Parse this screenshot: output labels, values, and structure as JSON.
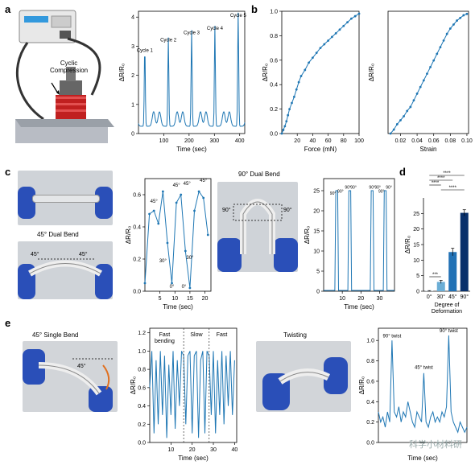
{
  "panels": {
    "a": {
      "label": "a",
      "illustration": {
        "annotation": "Cyclic\nCompression"
      },
      "chart": {
        "xlabel": "Time (sec)",
        "ylabel": "ΔR/R₀",
        "xlim": [
          0,
          420
        ],
        "ylim": [
          0,
          4.2
        ],
        "xticks": [
          "100",
          "200",
          "300",
          "400"
        ],
        "yticks": [
          "0",
          "1",
          "2",
          "3",
          "4"
        ],
        "cycles": [
          {
            "label": "Cycle 1",
            "t": 25,
            "peak": 2.7
          },
          {
            "label": "Cycle 2",
            "t": 118,
            "peak": 3.05
          },
          {
            "label": "Cycle 3",
            "t": 210,
            "peak": 3.3
          },
          {
            "label": "Cycle 4",
            "t": 302,
            "peak": 3.45
          },
          {
            "label": "Cycle 5",
            "t": 394,
            "peak": 3.9
          }
        ]
      }
    },
    "b": {
      "label": "b",
      "chart1": {
        "xlabel": "Force (mN)",
        "ylabel": "ΔR/R₀",
        "xticks": [
          "20",
          "40",
          "60",
          "80",
          "100"
        ],
        "yticks": [
          "0.0",
          "0.2",
          "0.4",
          "0.6",
          "0.8",
          "1.0"
        ],
        "x": [
          0,
          2,
          4,
          6,
          8,
          10,
          13,
          16,
          19,
          22,
          25,
          30,
          35,
          40,
          45,
          50,
          55,
          60,
          65,
          70,
          75,
          80,
          85,
          90,
          95,
          100
        ],
        "y": [
          0,
          0.03,
          0.06,
          0.1,
          0.15,
          0.2,
          0.25,
          0.3,
          0.36,
          0.42,
          0.47,
          0.52,
          0.58,
          0.62,
          0.66,
          0.7,
          0.73,
          0.76,
          0.79,
          0.82,
          0.85,
          0.88,
          0.91,
          0.94,
          0.96,
          0.98
        ]
      },
      "chart2": {
        "xlabel": "Strain",
        "ylabel": "ΔR/R₀",
        "xticks": [
          "0.02",
          "0.04",
          "0.06",
          "0.08",
          "0.10"
        ],
        "x": [
          0.008,
          0.012,
          0.016,
          0.02,
          0.024,
          0.028,
          0.032,
          0.036,
          0.04,
          0.044,
          0.048,
          0.052,
          0.056,
          0.06,
          0.064,
          0.068,
          0.072,
          0.076,
          0.08,
          0.084,
          0.088,
          0.092,
          0.096,
          0.1
        ],
        "y": [
          0.0,
          0.03,
          0.07,
          0.1,
          0.13,
          0.17,
          0.2,
          0.25,
          0.3,
          0.35,
          0.4,
          0.45,
          0.5,
          0.55,
          0.6,
          0.65,
          0.7,
          0.75,
          0.79,
          0.82,
          0.85,
          0.87,
          0.89,
          0.9
        ]
      }
    },
    "c": {
      "label": "c",
      "photo_caption_1": "45° Dual Bend",
      "photo_marks_1": [
        "45°",
        "45°"
      ],
      "chart1": {
        "xlabel": "Time (sec)",
        "ylabel": "ΔR/R₀",
        "xticks": [
          "5",
          "10",
          "15",
          "20"
        ],
        "yticks": [
          "0.0",
          "0.2",
          "0.4",
          "0.6"
        ],
        "annotations": [
          "45°",
          "45°",
          "45°",
          "45°",
          "30°",
          "30°",
          "0°",
          "0°"
        ],
        "x": [
          0,
          1.5,
          3,
          4.5,
          6,
          7.5,
          9,
          10.5,
          12,
          13.5,
          15,
          16.5,
          18,
          19.5,
          21
        ],
        "y": [
          0.05,
          0.48,
          0.5,
          0.42,
          0.62,
          0.3,
          0.05,
          0.55,
          0.6,
          0.25,
          0.02,
          0.5,
          0.62,
          0.58,
          0.35
        ]
      },
      "photo_caption_2": "90° Dual Bend",
      "photo_marks_2": [
        "90°",
        "90°"
      ],
      "chart2": {
        "xlabel": "Time (sec)",
        "ylabel": "ΔR/R₀",
        "xticks": [
          "10",
          "20",
          "30"
        ],
        "yticks": [
          "0",
          "5",
          "10",
          "15",
          "20",
          "25"
        ],
        "annotations": [
          "90°",
          "90°",
          "90°",
          "90°",
          "90°",
          "90°",
          "90°",
          "90°"
        ],
        "peaks": [
          7,
          14,
          26,
          33
        ],
        "peak_value": 25
      }
    },
    "d": {
      "label": "d",
      "chart_type": "bar",
      "xlabel": "Degree of Deformation",
      "ylabel": "ΔR/R₀",
      "categories": [
        "0°",
        "30°",
        "45°",
        "90°"
      ],
      "values": [
        0.1,
        3.0,
        12.6,
        25.2
      ],
      "errors": [
        0.1,
        0.5,
        1.2,
        1.0
      ],
      "colors": [
        "#c6dbef",
        "#6baed6",
        "#2171b5",
        "#08306b"
      ],
      "yticks": [
        "0",
        "5",
        "10",
        "15",
        "20",
        "25"
      ],
      "significance": [
        "****",
        "****",
        "****",
        "****",
        "***"
      ]
    },
    "e": {
      "label": "e",
      "photo_caption_1": "45° Single Bend",
      "photo_marks_1": [
        "45°"
      ],
      "chart1": {
        "xlabel": "Time (sec)",
        "ylabel": "ΔR/R₀",
        "xticks": [
          "10",
          "20",
          "30",
          "40"
        ],
        "yticks": [
          "0.0",
          "0.2",
          "0.4",
          "0.6",
          "0.8",
          "1.0",
          "1.2"
        ],
        "phases": [
          "Fast\nbending",
          "Slow",
          "Fast"
        ],
        "x": [
          0,
          1,
          2,
          3,
          4,
          5,
          6,
          7,
          8,
          9,
          10,
          11,
          12,
          13,
          14,
          15,
          16,
          17,
          18,
          19,
          20,
          21,
          22,
          23,
          24,
          25,
          26,
          27,
          28,
          29,
          30,
          31,
          32,
          33,
          34,
          35,
          36,
          37,
          38,
          39,
          40
        ],
        "y": [
          0.6,
          1.0,
          0.1,
          0.9,
          0.2,
          1.0,
          0.3,
          0.95,
          0.05,
          0.85,
          0.3,
          1.0,
          0.15,
          0.9,
          0.4,
          1.0,
          0.95,
          0.2,
          0.95,
          1.0,
          0.1,
          0.95,
          1.0,
          0.05,
          0.9,
          1.0,
          0.1,
          1.0,
          0.95,
          0.3,
          1.0,
          0.1,
          0.9,
          0.3,
          1.0,
          0.2,
          0.95,
          0.4,
          1.0,
          0.3,
          0.9
        ]
      },
      "photo_caption_2": "Twisting",
      "chart2": {
        "xlabel": "Time (sec)",
        "ylabel": "ΔR/R₀",
        "yticks": [
          "0.0",
          "0.2",
          "0.4",
          "0.6",
          "0.8",
          "1.0"
        ],
        "annotations": [
          "90° twist",
          "45° twist",
          "90° twist"
        ],
        "y": [
          0.3,
          0.2,
          0.25,
          0.15,
          0.3,
          0.2,
          1.0,
          0.3,
          0.25,
          0.35,
          0.2,
          0.3,
          0.25,
          0.4,
          0.3,
          0.2,
          0.15,
          0.3,
          0.25,
          0.2,
          0.68,
          0.2,
          0.15,
          0.25,
          0.3,
          0.2,
          0.25,
          0.2,
          0.3,
          0.25,
          0.35,
          1.05,
          0.3,
          0.2,
          0.15,
          0.1,
          0.2,
          0.15,
          0.1,
          0.15
        ]
      }
    }
  },
  "watermark": "科学小材料研",
  "colors": {
    "line": "#1f77b4",
    "photo_bg": "#d9dce0",
    "glove": "#2a4fb8"
  }
}
